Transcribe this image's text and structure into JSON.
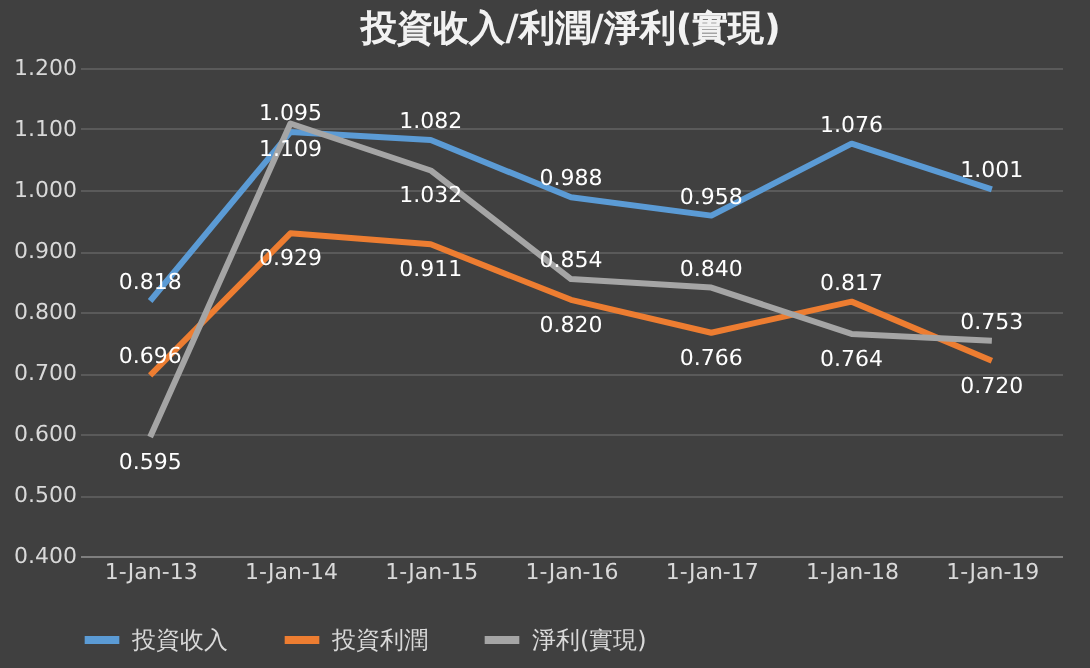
{
  "chart_data": {
    "type": "line",
    "title": "投資收入/利潤/淨利(實現)",
    "categories": [
      "1-Jan-13",
      "1-Jan-14",
      "1-Jan-15",
      "1-Jan-16",
      "1-Jan-17",
      "1-Jan-18",
      "1-Jan-19"
    ],
    "series": [
      {
        "name": "投資收入",
        "color": "#5b9bd5",
        "values": [
          0.818,
          1.095,
          1.082,
          0.988,
          0.958,
          1.076,
          1.001
        ],
        "value_labels": [
          "0.818",
          "1.095",
          "1.082",
          "0.988",
          "0.958",
          "1.076",
          "1.001"
        ]
      },
      {
        "name": "投資利潤",
        "color": "#ed7d31",
        "values": [
          0.696,
          0.929,
          0.911,
          0.82,
          0.766,
          0.817,
          0.72
        ],
        "value_labels": [
          "0.696",
          "0.929",
          "0.911",
          "0.820",
          "0.766",
          "0.817",
          "0.720"
        ]
      },
      {
        "name": "淨利(實現)",
        "color": "#a5a5a5",
        "values": [
          0.595,
          1.109,
          1.032,
          0.854,
          0.84,
          0.764,
          0.753
        ],
        "value_labels": [
          "0.595",
          "1.109",
          "1.032",
          "0.854",
          "0.840",
          "0.764",
          "0.753"
        ]
      }
    ],
    "ylim": [
      0.4,
      1.2
    ],
    "yticks": [
      {
        "value": 0.4,
        "label": "0.400"
      },
      {
        "value": 0.5,
        "label": "0.500"
      },
      {
        "value": 0.6,
        "label": "0.600"
      },
      {
        "value": 0.7,
        "label": "0.700"
      },
      {
        "value": 0.8,
        "label": "0.800"
      },
      {
        "value": 0.9,
        "label": "0.900"
      },
      {
        "value": 1.0,
        "label": "1.000"
      },
      {
        "value": 1.1,
        "label": "1.100"
      },
      {
        "value": 1.2,
        "label": "1.200"
      }
    ],
    "grid": "y",
    "legend": "bottom",
    "marker": "none",
    "line_style": "solid"
  }
}
